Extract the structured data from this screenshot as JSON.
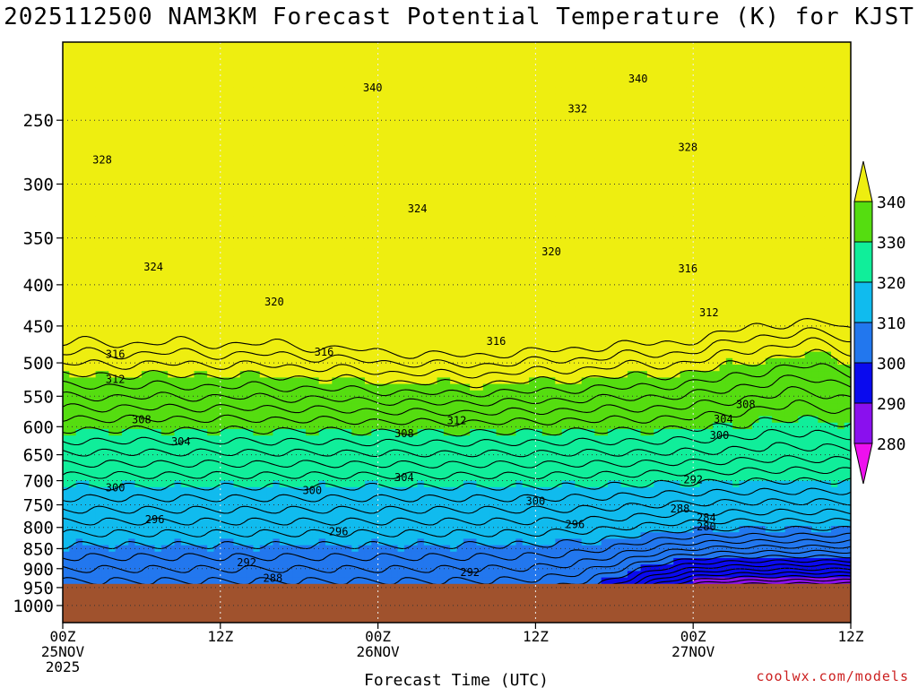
{
  "title": "2025112500 NAM3KM Forecast Potential Temperature (K) for KJST",
  "credit": "coolwx.com/models",
  "chart_data": {
    "type": "heatmap",
    "title": "2025112500 NAM3KM Forecast Potential Temperature (K) for KJST",
    "xlabel": "Forecast Time (UTC)",
    "ylabel": "",
    "x_range_hours": [
      0,
      60
    ],
    "x_ticks": [
      {
        "hour": 0,
        "lines": [
          "00Z",
          "25NOV",
          "2025"
        ]
      },
      {
        "hour": 12,
        "lines": [
          "12Z"
        ]
      },
      {
        "hour": 24,
        "lines": [
          "00Z",
          "26NOV"
        ]
      },
      {
        "hour": 36,
        "lines": [
          "12Z"
        ]
      },
      {
        "hour": 48,
        "lines": [
          "00Z",
          "27NOV"
        ]
      },
      {
        "hour": 60,
        "lines": [
          "12Z"
        ]
      }
    ],
    "y_scale": "log",
    "y_range": [
      1050,
      200
    ],
    "y_ticks": [
      250,
      300,
      350,
      400,
      450,
      500,
      550,
      600,
      650,
      700,
      750,
      800,
      850,
      900,
      950,
      1000
    ],
    "ground_pressure": 940,
    "grid": true,
    "colorbar": {
      "levels": [
        280,
        290,
        300,
        310,
        320,
        330,
        340
      ],
      "colors": [
        "#ee11ee",
        "#8a10ee",
        "#0a0aee",
        "#2277ee",
        "#10bbee",
        "#10ee9a",
        "#55dd10",
        "#eeee10"
      ]
    },
    "contour_labels": [
      {
        "hour": 24.0,
        "p": 1000,
        "text": ""
      }
    ],
    "labels": [
      {
        "hour": 23.6,
        "p": 228,
        "text": "340"
      },
      {
        "hour": 43.8,
        "p": 222,
        "text": "340"
      },
      {
        "hour": 39.2,
        "p": 242,
        "text": "332"
      },
      {
        "hour": 47.6,
        "p": 270,
        "text": "328"
      },
      {
        "hour": 3.0,
        "p": 280,
        "text": "328"
      },
      {
        "hour": 27.0,
        "p": 322,
        "text": "324"
      },
      {
        "hour": 6.9,
        "p": 380,
        "text": "324"
      },
      {
        "hour": 37.2,
        "p": 364,
        "text": "320"
      },
      {
        "hour": 16.1,
        "p": 420,
        "text": "320"
      },
      {
        "hour": 47.6,
        "p": 382,
        "text": "316"
      },
      {
        "hour": 4.0,
        "p": 488,
        "text": "316"
      },
      {
        "hour": 19.9,
        "p": 485,
        "text": "316"
      },
      {
        "hour": 33.0,
        "p": 470,
        "text": "316"
      },
      {
        "hour": 49.2,
        "p": 433,
        "text": "312"
      },
      {
        "hour": 4.0,
        "p": 524,
        "text": "312"
      },
      {
        "hour": 30.0,
        "p": 590,
        "text": "312"
      },
      {
        "hour": 6.0,
        "p": 588,
        "text": "308"
      },
      {
        "hour": 26.0,
        "p": 612,
        "text": "308"
      },
      {
        "hour": 52.0,
        "p": 563,
        "text": "308"
      },
      {
        "hour": 9.0,
        "p": 626,
        "text": "304"
      },
      {
        "hour": 26.0,
        "p": 694,
        "text": "304"
      },
      {
        "hour": 50.3,
        "p": 587,
        "text": "304"
      },
      {
        "hour": 4.0,
        "p": 714,
        "text": "300"
      },
      {
        "hour": 19.0,
        "p": 720,
        "text": "300"
      },
      {
        "hour": 36.0,
        "p": 742,
        "text": "300"
      },
      {
        "hour": 50.0,
        "p": 615,
        "text": "300"
      },
      {
        "hour": 7.0,
        "p": 782,
        "text": "296"
      },
      {
        "hour": 21.0,
        "p": 810,
        "text": "296"
      },
      {
        "hour": 39.0,
        "p": 793,
        "text": "296"
      },
      {
        "hour": 48.0,
        "p": 698,
        "text": "292"
      },
      {
        "hour": 14.0,
        "p": 885,
        "text": "292"
      },
      {
        "hour": 31.0,
        "p": 910,
        "text": "292"
      },
      {
        "hour": 47.0,
        "p": 759,
        "text": "288"
      },
      {
        "hour": 16.0,
        "p": 925,
        "text": "288"
      },
      {
        "hour": 49.0,
        "p": 778,
        "text": "284"
      },
      {
        "hour": 49.0,
        "p": 798,
        "text": "280"
      }
    ]
  }
}
